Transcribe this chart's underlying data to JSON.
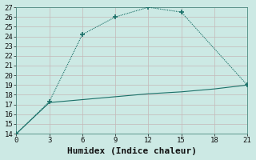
{
  "xlabel": "Humidex (Indice chaleur)",
  "ylabel": "",
  "background_color": "#cce9e4",
  "line_color": "#1a7068",
  "grid_color": "#c8d8d0",
  "xlim": [
    0,
    21
  ],
  "ylim": [
    14,
    27
  ],
  "xticks": [
    0,
    3,
    6,
    9,
    12,
    15,
    18,
    21
  ],
  "yticks": [
    14,
    15,
    16,
    17,
    18,
    19,
    20,
    21,
    22,
    23,
    24,
    25,
    26,
    27
  ],
  "peaked_x": [
    0,
    3,
    6,
    9,
    12,
    15,
    21
  ],
  "peaked_y": [
    14.0,
    17.3,
    24.2,
    26.0,
    27.0,
    26.5,
    19.0
  ],
  "flat_x": [
    0,
    3,
    6,
    9,
    12,
    15,
    18,
    21
  ],
  "flat_y": [
    14.0,
    17.2,
    17.5,
    17.8,
    18.1,
    18.3,
    18.6,
    19.0
  ],
  "font_family": "monospace",
  "tick_fontsize": 6.5,
  "xlabel_fontsize": 8
}
